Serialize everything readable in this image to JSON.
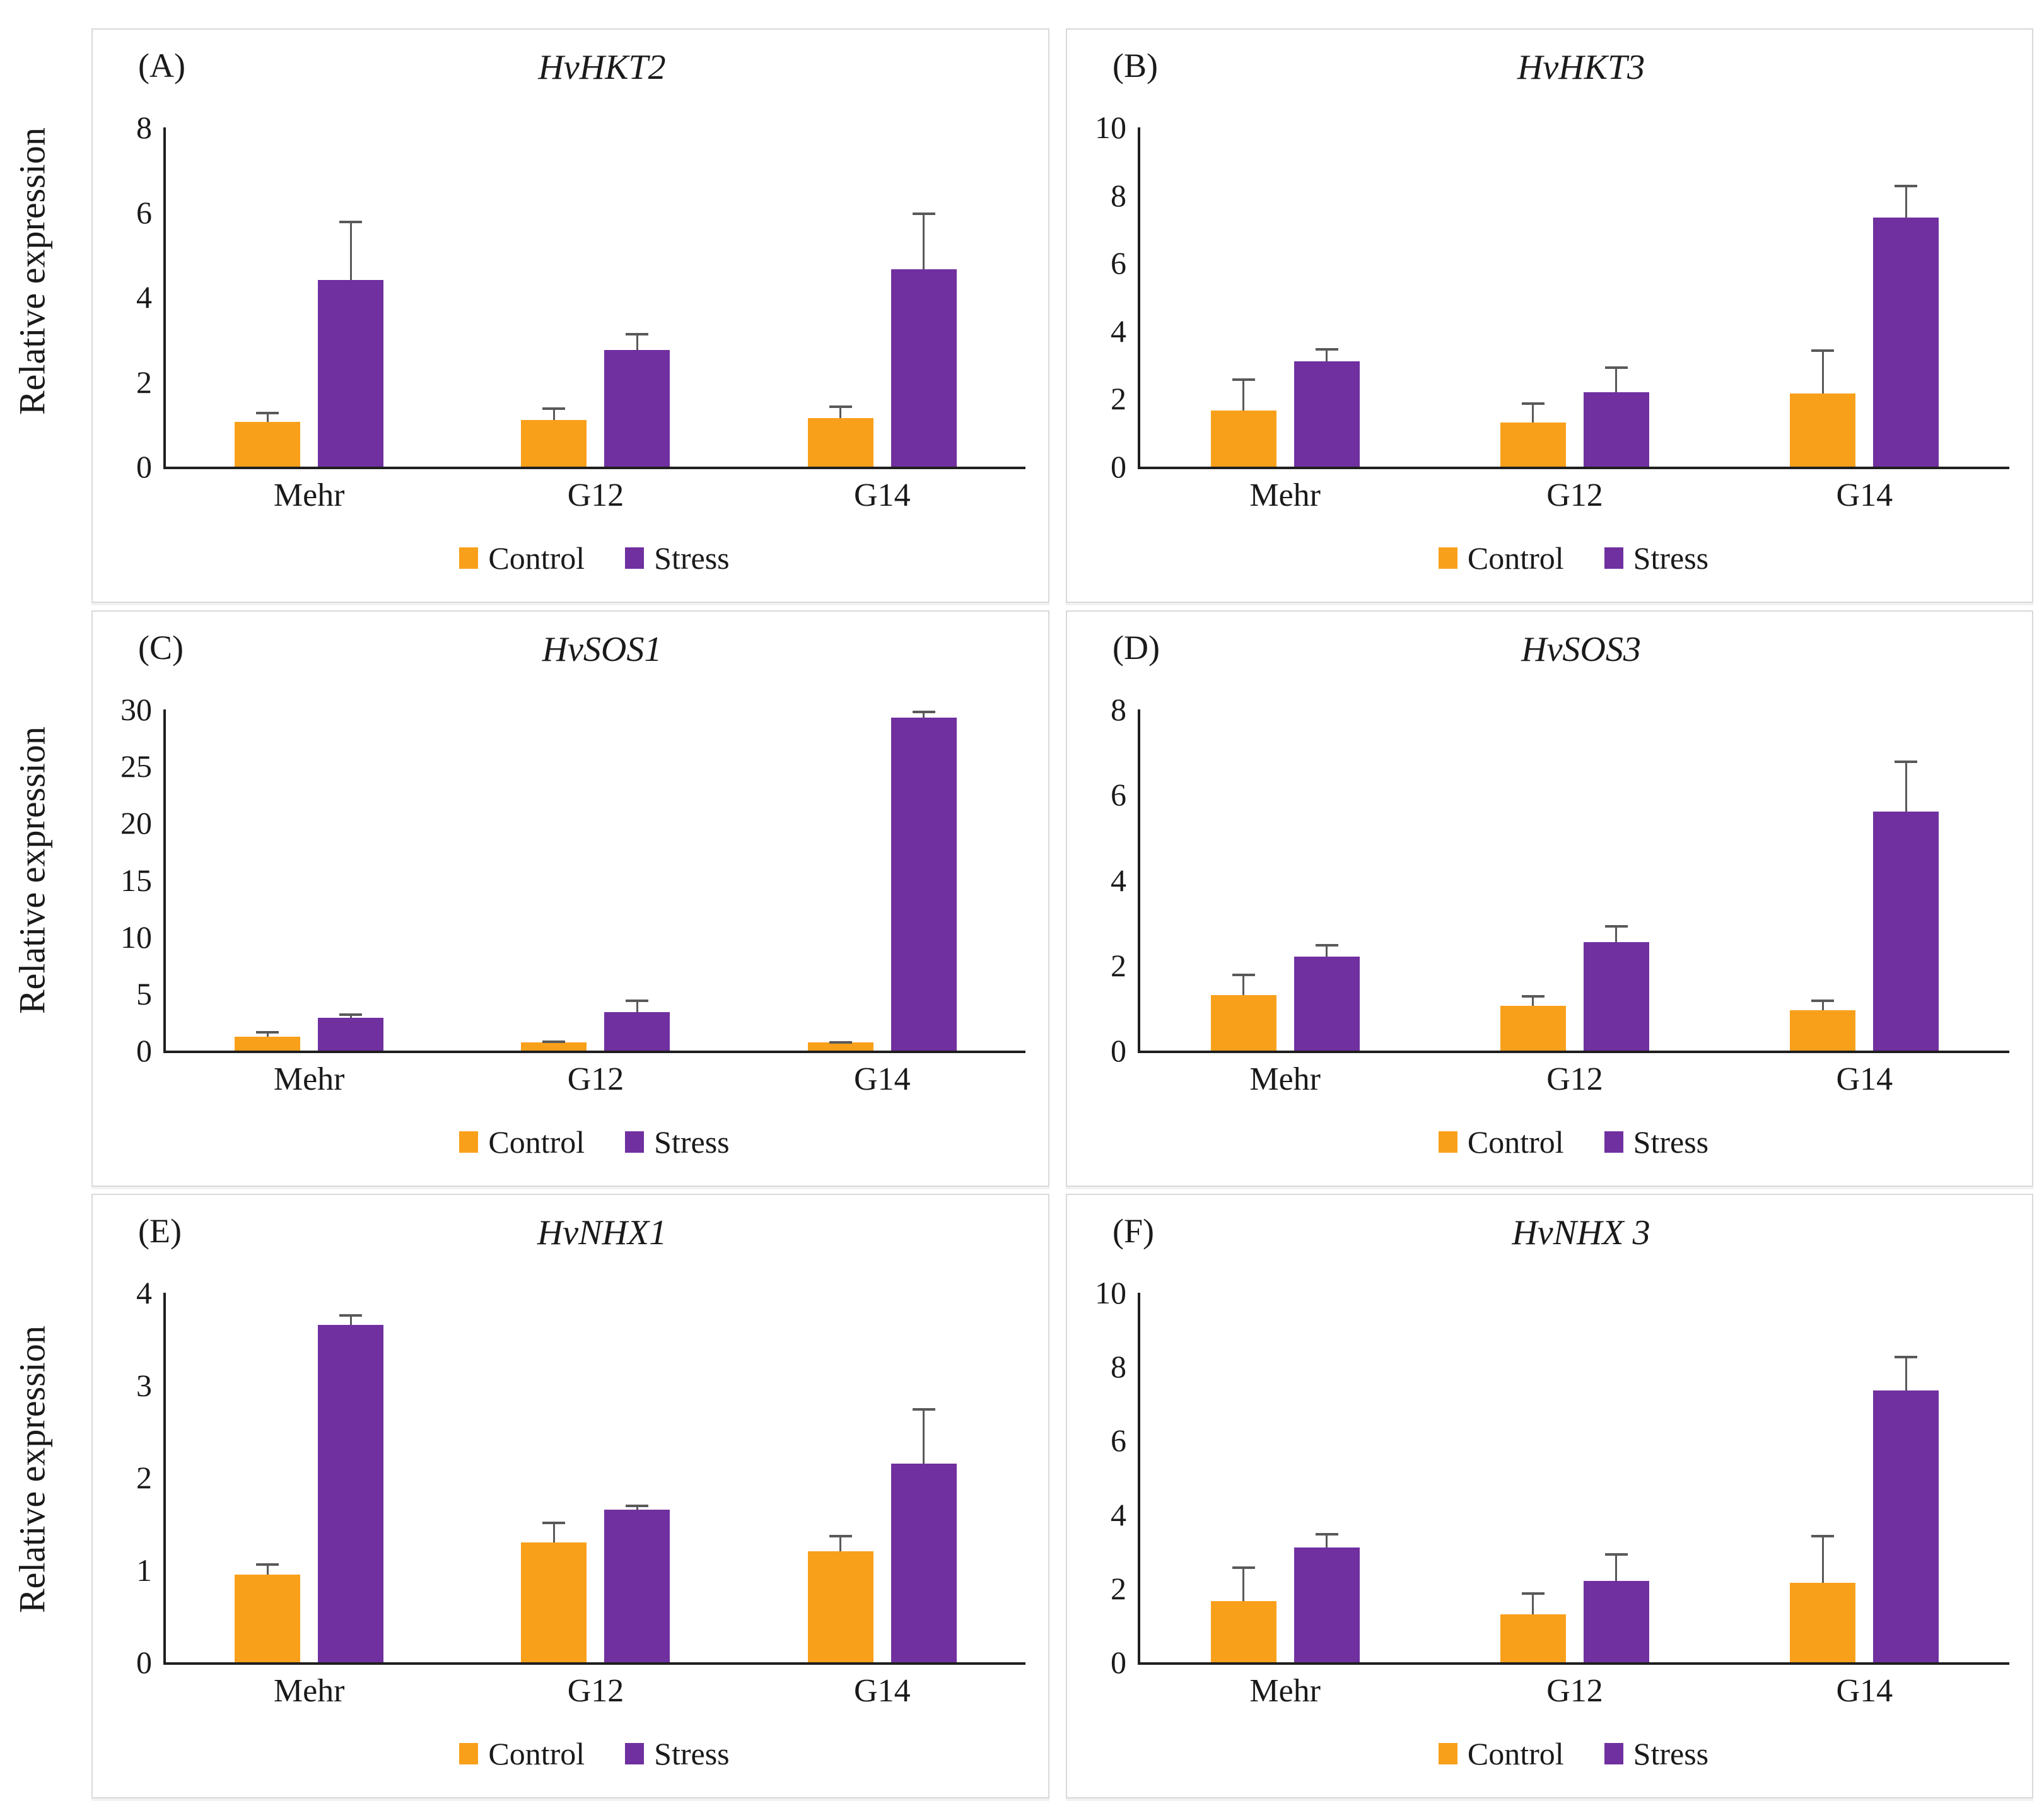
{
  "figure": {
    "y_axis_label": "Relative expression",
    "legend": [
      {
        "label": "Control",
        "color": "#F9A01B"
      },
      {
        "label": "Stress",
        "color": "#7030A0"
      }
    ],
    "axis_color": "#1f1f1f",
    "error_bar_color": "#595959"
  },
  "chart_data": [
    {
      "type": "bar",
      "panel_letter": "(A)",
      "title": "HvHKT2",
      "ylim": [
        0,
        8
      ],
      "yticks": [
        0,
        2,
        4,
        6,
        8
      ],
      "categories": [
        "Mehr",
        "G12",
        "G14"
      ],
      "series": [
        {
          "name": "Control",
          "color": "#F9A01B",
          "values": [
            1.05,
            1.1,
            1.15
          ],
          "errors": [
            0.25,
            0.3,
            0.3
          ]
        },
        {
          "name": "Stress",
          "color": "#7030A0",
          "values": [
            4.4,
            2.75,
            4.65
          ],
          "errors": [
            1.4,
            0.4,
            1.35
          ]
        }
      ]
    },
    {
      "type": "bar",
      "panel_letter": "(B)",
      "title": "HvHKT3",
      "ylim": [
        0,
        10
      ],
      "yticks": [
        0,
        2,
        4,
        6,
        8,
        10
      ],
      "categories": [
        "Mehr",
        "G12",
        "G14"
      ],
      "series": [
        {
          "name": "Control",
          "color": "#F9A01B",
          "values": [
            1.65,
            1.3,
            2.15
          ],
          "errors": [
            0.95,
            0.6,
            1.3
          ]
        },
        {
          "name": "Stress",
          "color": "#7030A0",
          "values": [
            3.1,
            2.2,
            7.35
          ],
          "errors": [
            0.4,
            0.75,
            0.95
          ]
        }
      ]
    },
    {
      "type": "bar",
      "panel_letter": "(C)",
      "title": "HvSOS1",
      "ylim": [
        0,
        30
      ],
      "yticks": [
        0,
        5,
        10,
        15,
        20,
        25,
        30
      ],
      "categories": [
        "Mehr",
        "G12",
        "G14"
      ],
      "series": [
        {
          "name": "Control",
          "color": "#F9A01B",
          "values": [
            1.2,
            0.7,
            0.7
          ],
          "errors": [
            0.5,
            0.2,
            0.15
          ]
        },
        {
          "name": "Stress",
          "color": "#7030A0",
          "values": [
            2.9,
            3.4,
            29.3
          ],
          "errors": [
            0.35,
            1.1,
            0.6
          ]
        }
      ]
    },
    {
      "type": "bar",
      "panel_letter": "(D)",
      "title": "HvSOS3",
      "ylim": [
        0,
        8
      ],
      "yticks": [
        0,
        2,
        4,
        6,
        8
      ],
      "categories": [
        "Mehr",
        "G12",
        "G14"
      ],
      "series": [
        {
          "name": "Control",
          "color": "#F9A01B",
          "values": [
            1.3,
            1.05,
            0.95
          ],
          "errors": [
            0.5,
            0.25,
            0.25
          ]
        },
        {
          "name": "Stress",
          "color": "#7030A0",
          "values": [
            2.2,
            2.55,
            5.6
          ],
          "errors": [
            0.3,
            0.4,
            1.2
          ]
        }
      ]
    },
    {
      "type": "bar",
      "panel_letter": "(E)",
      "title": "HvNHX1",
      "ylim": [
        0,
        4
      ],
      "yticks": [
        0,
        1,
        2,
        3,
        4
      ],
      "categories": [
        "Mehr",
        "G12",
        "G14"
      ],
      "series": [
        {
          "name": "Control",
          "color": "#F9A01B",
          "values": [
            0.95,
            1.3,
            1.2
          ],
          "errors": [
            0.12,
            0.22,
            0.18
          ]
        },
        {
          "name": "Stress",
          "color": "#7030A0",
          "values": [
            3.65,
            1.65,
            2.15
          ],
          "errors": [
            0.12,
            0.06,
            0.6
          ]
        }
      ]
    },
    {
      "type": "bar",
      "panel_letter": "(F)",
      "title": "HvNHX 3",
      "ylim": [
        0,
        10
      ],
      "yticks": [
        0,
        2,
        4,
        6,
        8,
        10
      ],
      "categories": [
        "Mehr",
        "G12",
        "G14"
      ],
      "series": [
        {
          "name": "Control",
          "color": "#F9A01B",
          "values": [
            1.65,
            1.3,
            2.15
          ],
          "errors": [
            0.95,
            0.6,
            1.3
          ]
        },
        {
          "name": "Stress",
          "color": "#7030A0",
          "values": [
            3.1,
            2.2,
            7.35
          ],
          "errors": [
            0.4,
            0.75,
            0.95
          ]
        }
      ]
    }
  ]
}
